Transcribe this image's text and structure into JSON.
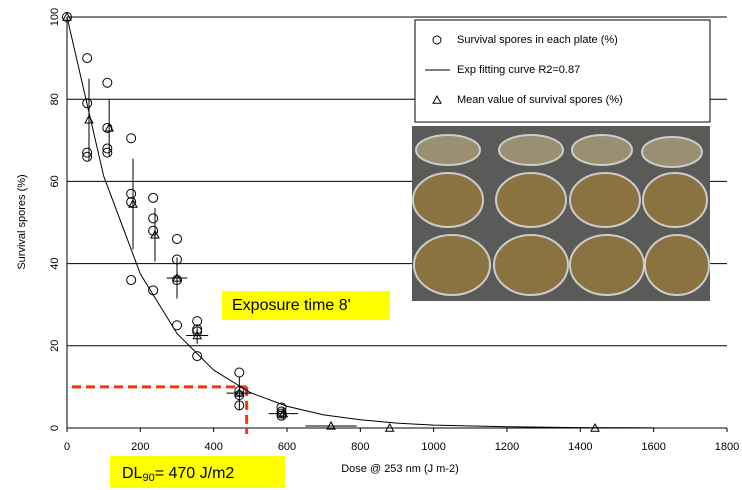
{
  "chart_data": {
    "type": "scatter",
    "x_label": "Dose @ 253 nm (J m-2)",
    "y_label": "Survival spores (%)",
    "xlim": [
      0,
      1800
    ],
    "xticks": [
      0,
      200,
      400,
      600,
      800,
      1000,
      1200,
      1400,
      1600,
      1800
    ],
    "ylim": [
      0,
      100
    ],
    "yticks": [
      0,
      20,
      40,
      60,
      80,
      100
    ],
    "grid": true,
    "series": [
      {
        "name": "Survival spores in each plate (%)",
        "marker": "circle",
        "color": "#000000",
        "x": [
          0,
          55,
          55,
          55,
          55,
          110,
          110,
          110,
          110,
          175,
          175,
          175,
          175,
          235,
          235,
          235,
          235,
          300,
          300,
          300,
          300,
          355,
          355,
          355,
          355,
          470,
          470,
          470,
          470,
          585,
          585,
          585,
          585
        ],
        "values": [
          100,
          90,
          79,
          67,
          66,
          84,
          73,
          68,
          67,
          70.5,
          57,
          55,
          36,
          56,
          51,
          48,
          33.5,
          46,
          41,
          36,
          25,
          26,
          24,
          23.5,
          17.5,
          13.5,
          9,
          8,
          5.5,
          5,
          4,
          3.5,
          3
        ]
      },
      {
        "name": "Exp fitting curve R2=0.87",
        "marker": "line",
        "color": "#000000",
        "x": [
          0,
          100,
          200,
          300,
          400,
          500,
          600,
          700,
          800,
          900,
          1000,
          1200,
          1400,
          1600
        ],
        "values": [
          100,
          61.3,
          37.5,
          23,
          14.1,
          8.6,
          5.3,
          3.2,
          2,
          1.2,
          0.7,
          0.3,
          0.1,
          0.04
        ]
      },
      {
        "name": "Mean value of survival spores (%)",
        "marker": "triangle",
        "color": "#000000",
        "x": [
          0,
          60,
          115,
          180,
          240,
          300,
          355,
          470,
          590,
          720,
          880,
          1440
        ],
        "values": [
          100,
          75,
          73,
          54.5,
          47,
          36.5,
          22.5,
          8.5,
          3.5,
          0.5,
          0,
          0
        ],
        "y_errors": [
          null,
          10,
          7,
          11,
          6.5,
          5,
          2,
          4,
          1.5,
          null,
          null,
          null
        ],
        "x_errors": [
          null,
          null,
          null,
          null,
          null,
          28,
          30,
          35,
          40,
          70,
          null,
          null
        ]
      }
    ],
    "annotations": {
      "exposure": "Exposure time 8'",
      "dl_main": "DL",
      "dl_sub": "90",
      "dl_rest": "= 470 J/m2"
    },
    "reference": {
      "y": 10,
      "x": 490,
      "color": "#ff3300"
    }
  }
}
